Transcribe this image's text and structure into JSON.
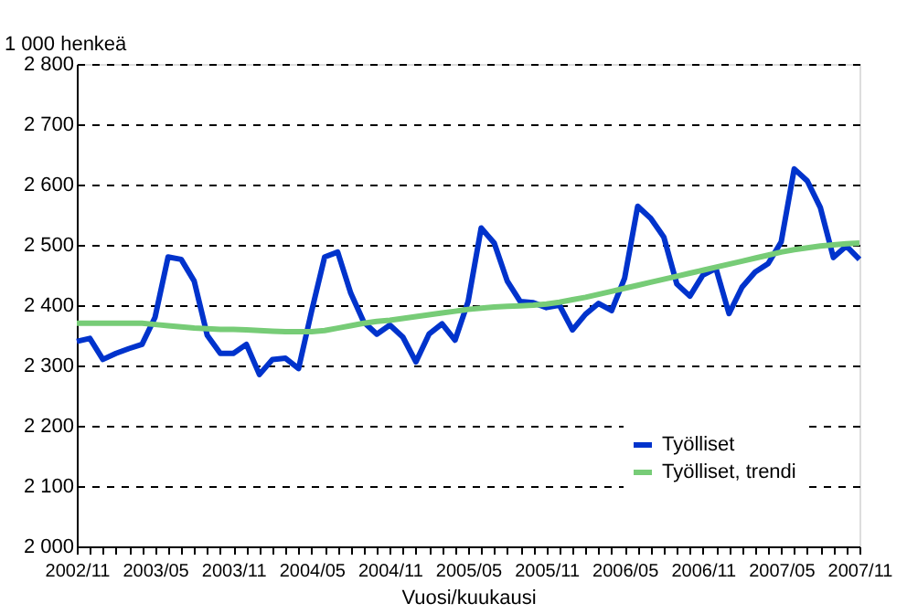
{
  "chart_data": {
    "type": "line",
    "xlabel": "Vuosi/kuukausi",
    "ylabel": "1 000 henkeä",
    "categories": [
      "2002/11",
      null,
      null,
      null,
      null,
      null,
      "2003/05",
      null,
      null,
      null,
      null,
      null,
      "2003/11",
      null,
      null,
      null,
      null,
      null,
      "2004/05",
      null,
      null,
      null,
      null,
      null,
      "2004/11",
      null,
      null,
      null,
      null,
      null,
      "2005/05",
      null,
      null,
      null,
      null,
      null,
      "2005/11",
      null,
      null,
      null,
      null,
      null,
      "2006/05",
      null,
      null,
      null,
      null,
      null,
      "2006/11",
      null,
      null,
      null,
      null,
      null,
      "2007/05",
      null,
      null,
      null,
      null,
      null,
      "2007/11"
    ],
    "series": [
      {
        "name": "Työlliset",
        "color": "#0033cc",
        "values": [
          2340,
          2345,
          2310,
          2320,
          2328,
          2335,
          2380,
          2480,
          2476,
          2440,
          2350,
          2320,
          2320,
          2335,
          2285,
          2310,
          2312,
          2295,
          2390,
          2480,
          2488,
          2420,
          2372,
          2352,
          2367,
          2347,
          2306,
          2352,
          2369,
          2342,
          2406,
          2528,
          2503,
          2440,
          2406,
          2404,
          2396,
          2400,
          2359,
          2385,
          2403,
          2391,
          2445,
          2564,
          2544,
          2513,
          2435,
          2415,
          2450,
          2461,
          2386,
          2430,
          2455,
          2469,
          2505,
          2626,
          2606,
          2562,
          2479,
          2498,
          2476
        ]
      },
      {
        "name": "Työlliset, trendi",
        "color": "#77cc77",
        "values": [
          2370,
          2370,
          2370,
          2370,
          2370,
          2370,
          2368,
          2366,
          2364,
          2362,
          2361,
          2360,
          2360,
          2359,
          2358,
          2357,
          2356,
          2356,
          2356,
          2358,
          2362,
          2366,
          2370,
          2373,
          2375,
          2378,
          2381,
          2384,
          2387,
          2390,
          2393,
          2395,
          2397,
          2398,
          2399,
          2400,
          2402,
          2405,
          2409,
          2413,
          2418,
          2423,
          2428,
          2433,
          2438,
          2443,
          2448,
          2453,
          2458,
          2463,
          2468,
          2473,
          2478,
          2483,
          2488,
          2492,
          2495,
          2498,
          2500,
          2502,
          2503
        ]
      }
    ],
    "ylim": [
      2000,
      2800
    ],
    "yticks": [
      {
        "value": 2000,
        "label": "2 000"
      },
      {
        "value": 2100,
        "label": "2 100"
      },
      {
        "value": 2200,
        "label": "2 200"
      },
      {
        "value": 2300,
        "label": "2 300"
      },
      {
        "value": 2400,
        "label": "2 400"
      },
      {
        "value": 2500,
        "label": "2 500"
      },
      {
        "value": 2600,
        "label": "2 600"
      },
      {
        "value": 2700,
        "label": "2 700"
      },
      {
        "value": 2800,
        "label": "2 800"
      }
    ],
    "grid": "y",
    "legend": "bottom right",
    "marker": "none",
    "line_style": "solid"
  }
}
